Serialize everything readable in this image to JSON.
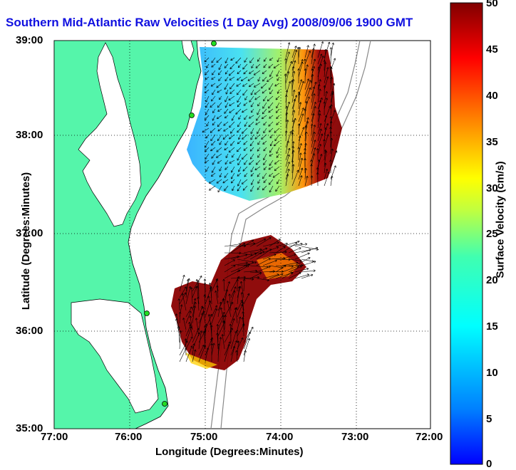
{
  "title": "Southern Mid-Atlantic Raw Velocities (1 Day Avg) 2008/09/06 1900 GMT",
  "axes": {
    "xlabel": "Longitude (Degrees:Minutes)",
    "ylabel": "Latitude (Degrees:Minutes)",
    "xticks": [
      "77:00",
      "76:00",
      "75:00",
      "74:00",
      "73:00",
      "72:00"
    ],
    "yticks": [
      "39:00",
      "38:00",
      "37:00",
      "36:00",
      "35:00"
    ]
  },
  "colorbar": {
    "label": "Surface Velocity (cm/s)",
    "ticks": [
      "0",
      "5",
      "10",
      "15",
      "20",
      "25",
      "30",
      "35",
      "40",
      "45",
      "50"
    ],
    "min": 0,
    "max": 50
  },
  "colors": {
    "land": "#55f5aa",
    "title": "#1010e0",
    "station": "#22dd22"
  }
}
